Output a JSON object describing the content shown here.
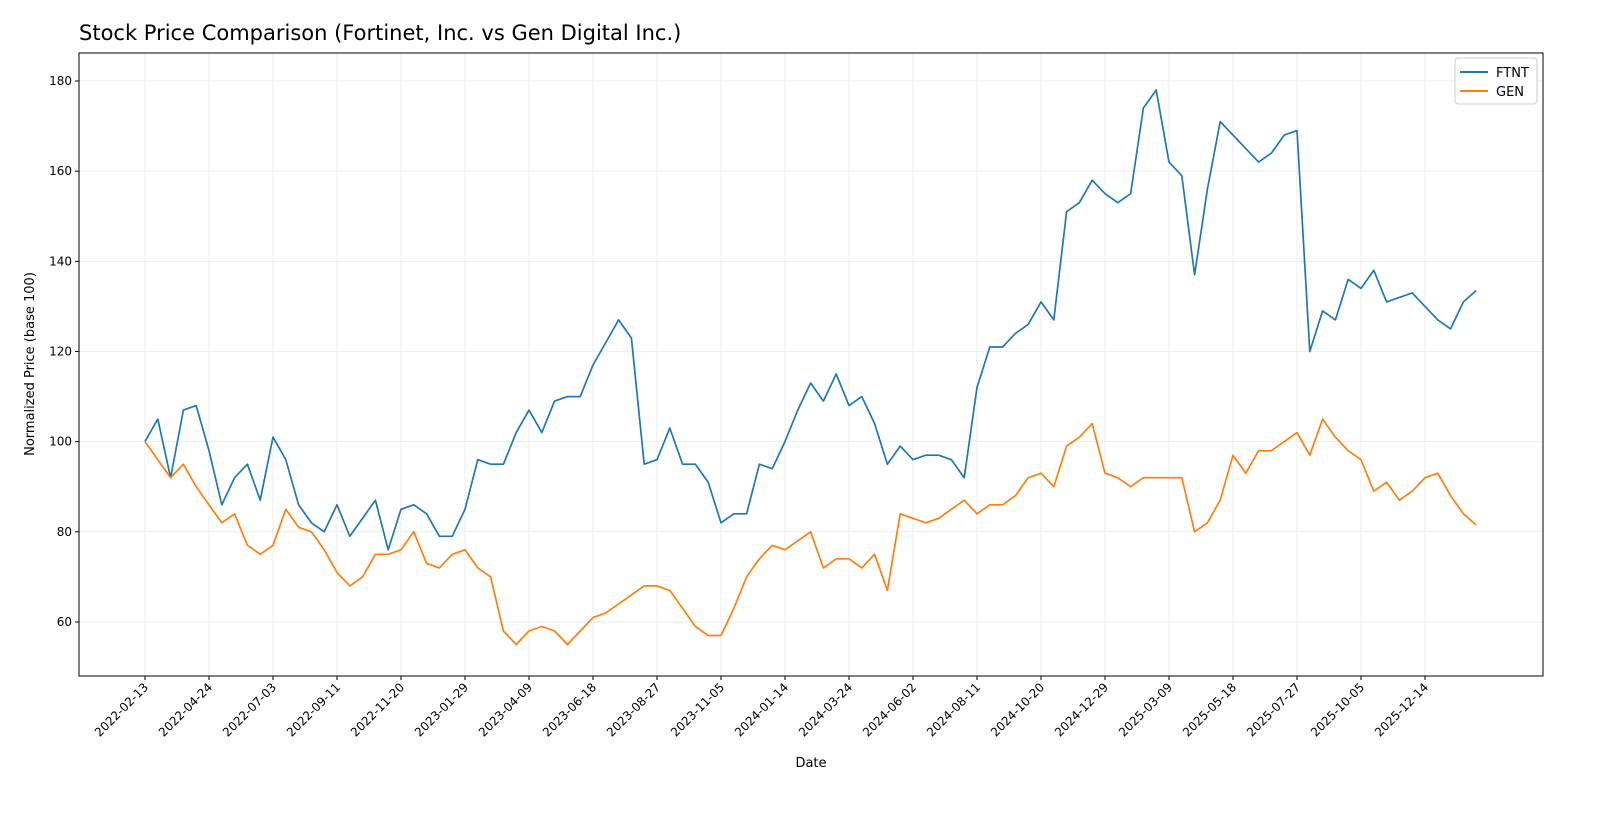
{
  "chart_data": {
    "type": "line",
    "title": "Stock Price Comparison (Fortinet, Inc. vs Gen Digital Inc.)",
    "xlabel": "Date",
    "ylabel": "Normalized Price (base 100)",
    "ylim": [
      48,
      186
    ],
    "yticks": [
      60,
      80,
      100,
      120,
      140,
      160,
      180
    ],
    "xticks": [
      "2022-02-13",
      "2022-04-24",
      "2022-07-03",
      "2022-09-11",
      "2022-11-20",
      "2023-01-29",
      "2023-04-09",
      "2023-06-18",
      "2023-08-27",
      "2023-11-05",
      "2024-01-14",
      "2024-03-24",
      "2024-06-02",
      "2024-08-11",
      "2024-10-20",
      "2024-12-29",
      "2025-03-09",
      "2025-05-18",
      "2025-07-27",
      "2025-10-05",
      "2025-12-14"
    ],
    "grid": true,
    "legend_position": "top-right",
    "x": [
      "2022-02-13",
      "2022-02-27",
      "2022-03-13",
      "2022-03-27",
      "2022-04-10",
      "2022-04-24",
      "2022-05-08",
      "2022-05-22",
      "2022-06-05",
      "2022-06-19",
      "2022-07-03",
      "2022-07-17",
      "2022-07-31",
      "2022-08-14",
      "2022-08-28",
      "2022-09-11",
      "2022-09-25",
      "2022-10-09",
      "2022-10-23",
      "2022-11-06",
      "2022-11-20",
      "2022-12-04",
      "2022-12-18",
      "2023-01-01",
      "2023-01-15",
      "2023-01-29",
      "2023-02-12",
      "2023-02-26",
      "2023-03-12",
      "2023-03-26",
      "2023-04-09",
      "2023-04-23",
      "2023-05-07",
      "2023-05-21",
      "2023-06-04",
      "2023-06-18",
      "2023-07-02",
      "2023-07-16",
      "2023-07-30",
      "2023-08-13",
      "2023-08-27",
      "2023-09-10",
      "2023-09-24",
      "2023-10-08",
      "2023-10-22",
      "2023-11-05",
      "2023-11-19",
      "2023-12-03",
      "2023-12-17",
      "2023-12-31",
      "2024-01-14",
      "2024-01-28",
      "2024-02-11",
      "2024-02-25",
      "2024-03-10",
      "2024-03-24",
      "2024-04-07",
      "2024-04-21",
      "2024-05-05",
      "2024-05-19",
      "2024-06-02",
      "2024-06-16",
      "2024-06-30",
      "2024-07-14",
      "2024-07-28",
      "2024-08-11",
      "2024-08-25",
      "2024-09-08",
      "2024-09-22",
      "2024-10-06",
      "2024-10-20",
      "2024-11-03",
      "2024-11-17",
      "2024-12-01",
      "2024-12-15",
      "2024-12-29",
      "2025-01-12",
      "2025-01-26",
      "2025-02-09",
      "2025-02-23",
      "2025-03-09",
      "2025-03-23",
      "2025-04-06",
      "2025-04-20",
      "2025-05-04",
      "2025-05-18",
      "2025-06-01",
      "2025-06-15",
      "2025-06-29",
      "2025-07-13",
      "2025-07-27",
      "2025-08-10",
      "2025-08-24",
      "2025-09-07",
      "2025-09-21",
      "2025-10-05",
      "2025-10-19",
      "2025-11-02",
      "2025-11-16",
      "2025-11-30",
      "2025-12-14",
      "2025-12-28",
      "2026-01-11",
      "2026-01-25",
      "2026-02-08"
    ],
    "series": [
      {
        "name": "FTNT",
        "color": "#1f77b4",
        "values": [
          100,
          105,
          92,
          107,
          108,
          98,
          86,
          92,
          95,
          87,
          101,
          96,
          86,
          82,
          80,
          86,
          79,
          83,
          87,
          76,
          85,
          86,
          84,
          79,
          79,
          85,
          96,
          95,
          95,
          102,
          107,
          102,
          109,
          110,
          110,
          117,
          122,
          127,
          123,
          95,
          96,
          103,
          95,
          95,
          91,
          82,
          84,
          84,
          95,
          94,
          100,
          107,
          113,
          109,
          115,
          108,
          110,
          104,
          95,
          99,
          96,
          97,
          97,
          96,
          92,
          112,
          121,
          121,
          124,
          126,
          131,
          127,
          151,
          153,
          158,
          155,
          153,
          155,
          174,
          178,
          162,
          159,
          137,
          156,
          171,
          168,
          165,
          162,
          164,
          168,
          169,
          120,
          129,
          127,
          136,
          134,
          138,
          131,
          132,
          133,
          130,
          127,
          125,
          131,
          133.5
        ]
      },
      {
        "name": "GEN",
        "color": "#ff7f0e",
        "values": [
          100,
          96,
          92,
          95,
          90,
          86,
          82,
          84,
          77,
          75,
          77,
          85,
          81,
          80,
          76,
          71,
          68,
          70,
          75,
          75,
          76,
          80,
          73,
          72,
          75,
          76,
          72,
          70,
          58,
          55,
          58,
          59,
          58,
          55,
          58,
          61,
          62,
          64,
          66,
          68,
          68,
          67,
          63,
          59,
          57,
          57,
          63,
          70,
          74,
          77,
          76,
          78,
          80,
          72,
          74,
          74,
          72,
          75,
          67,
          84,
          83,
          82,
          83,
          85,
          87,
          84,
          86,
          86,
          88,
          92,
          93,
          90,
          99,
          101,
          104,
          93,
          92,
          90,
          92,
          92,
          92,
          92,
          80,
          82,
          87,
          97,
          93,
          98,
          98,
          100,
          102,
          97,
          105,
          101,
          98,
          96,
          89,
          91,
          87,
          89,
          92,
          93,
          88,
          84,
          81.5
        ]
      }
    ]
  }
}
